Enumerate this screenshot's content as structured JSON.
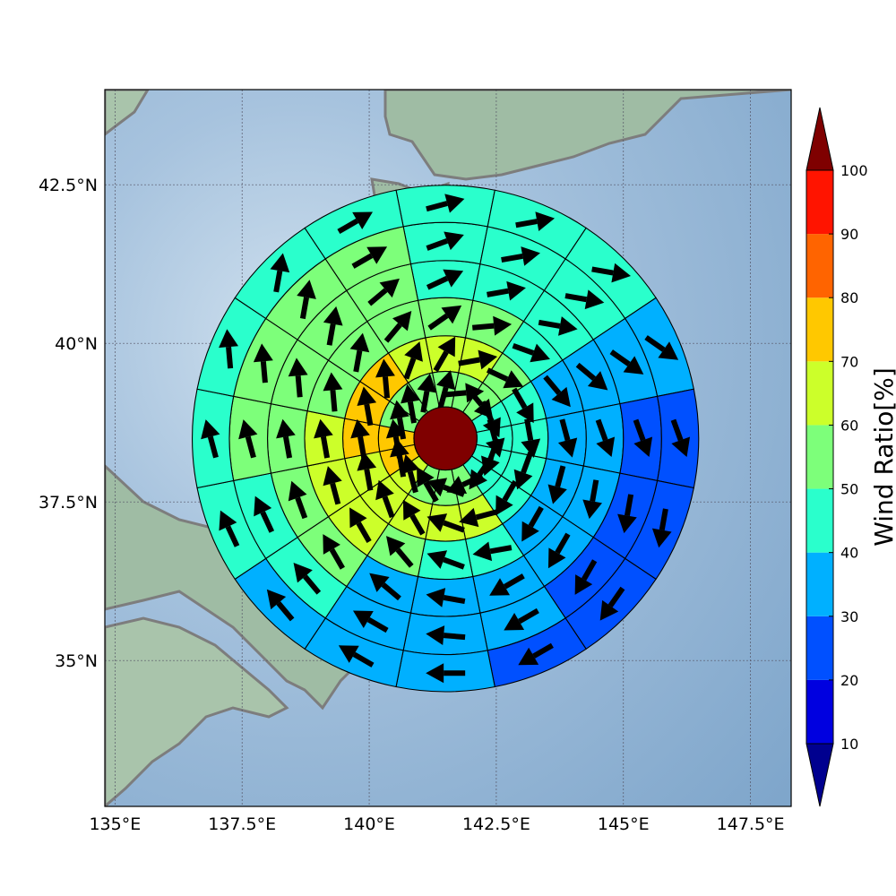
{
  "map": {
    "lon_range": [
      134.8,
      148.3
    ],
    "lat_range": [
      32.7,
      44.0
    ],
    "x_ticks": [
      {
        "value": 135,
        "label": "135°E"
      },
      {
        "value": 137.5,
        "label": "137.5°E"
      },
      {
        "value": 140,
        "label": "140°E"
      },
      {
        "value": 142.5,
        "label": "142.5°E"
      },
      {
        "value": 145,
        "label": "145°E"
      },
      {
        "value": 147.5,
        "label": "147.5°E"
      }
    ],
    "y_ticks": [
      {
        "value": 35,
        "label": "35°N"
      },
      {
        "value": 37.5,
        "label": "37.5°N"
      },
      {
        "value": 40,
        "label": "40°N"
      },
      {
        "value": 42.5,
        "label": "42.5°N"
      }
    ],
    "grid": true,
    "sea_color": "#8fb3d4",
    "land_color": "#8fb29a",
    "coastline_color": "#7d7d7d",
    "center": {
      "lon": 141.5,
      "lat": 38.5,
      "color": "#7f0000"
    }
  },
  "chart_data": {
    "type": "heatmap",
    "description_kind": "polar-sector-grid",
    "ring_edges_deg": [
      0.62,
      1.32,
      2.02,
      2.77,
      3.5,
      4.25,
      4.98
    ],
    "sectors": 16,
    "sector_order": "clockwise from north",
    "values": [
      [
        100,
        100,
        100,
        100,
        100,
        100,
        100,
        100,
        100,
        100,
        100,
        100,
        100,
        100,
        100,
        100
      ],
      [
        55,
        55,
        55,
        45,
        45,
        45,
        45,
        55,
        55,
        55,
        65,
        75,
        75,
        55,
        55,
        55
      ],
      [
        65,
        65,
        55,
        45,
        45,
        45,
        45,
        65,
        65,
        65,
        65,
        65,
        75,
        75,
        75,
        65
      ],
      [
        55,
        55,
        45,
        35,
        35,
        35,
        35,
        45,
        45,
        55,
        65,
        65,
        65,
        55,
        55,
        55
      ],
      [
        45,
        45,
        45,
        35,
        35,
        35,
        35,
        35,
        35,
        35,
        55,
        55,
        55,
        55,
        55,
        55
      ],
      [
        45,
        45,
        45,
        35,
        25,
        25,
        25,
        35,
        35,
        35,
        45,
        45,
        55,
        55,
        55,
        55
      ],
      [
        45,
        45,
        45,
        35,
        25,
        25,
        25,
        25,
        35,
        35,
        35,
        45,
        45,
        45,
        45,
        45
      ]
    ],
    "arrow_directions_deg": [
      [
        0,
        0,
        0,
        0,
        0,
        0,
        0,
        0,
        0,
        0,
        0,
        0,
        0,
        0,
        0,
        0
      ],
      [
        15,
        85,
        140,
        155,
        165,
        200,
        215,
        245,
        290,
        330,
        345,
        350,
        350,
        350,
        350,
        10
      ],
      [
        30,
        80,
        115,
        150,
        170,
        200,
        210,
        255,
        290,
        330,
        340,
        350,
        350,
        350,
        355,
        20
      ],
      [
        55,
        85,
        110,
        140,
        165,
        195,
        210,
        260,
        290,
        320,
        330,
        345,
        350,
        355,
        10,
        40
      ],
      [
        65,
        80,
        100,
        130,
        160,
        190,
        210,
        240,
        280,
        310,
        330,
        340,
        350,
        355,
        10,
        50
      ],
      [
        70,
        80,
        100,
        125,
        160,
        190,
        210,
        240,
        275,
        300,
        320,
        335,
        345,
        355,
        10,
        60
      ],
      [
        75,
        80,
        100,
        125,
        160,
        190,
        215,
        240,
        270,
        300,
        320,
        335,
        345,
        355,
        10,
        60
      ]
    ],
    "colorbar": {
      "label": "Wind Ratio[%]",
      "ticks": [
        "10",
        "20",
        "30",
        "40",
        "50",
        "60",
        "70",
        "80",
        "90",
        "100"
      ],
      "bins": [
        {
          "low": null,
          "high": 10,
          "color": "#00008f"
        },
        {
          "low": 10,
          "high": 20,
          "color": "#0000e0"
        },
        {
          "low": 20,
          "high": 30,
          "color": "#0050ff"
        },
        {
          "low": 30,
          "high": 40,
          "color": "#00b0ff"
        },
        {
          "low": 40,
          "high": 50,
          "color": "#2affcc"
        },
        {
          "low": 50,
          "high": 60,
          "color": "#7dff7a"
        },
        {
          "low": 60,
          "high": 70,
          "color": "#ccff2a"
        },
        {
          "low": 70,
          "high": 80,
          "color": "#ffc800"
        },
        {
          "low": 80,
          "high": 90,
          "color": "#ff6400"
        },
        {
          "low": 90,
          "high": 100,
          "color": "#ff1400"
        },
        {
          "low": 100,
          "high": null,
          "color": "#7f0000"
        }
      ]
    }
  }
}
